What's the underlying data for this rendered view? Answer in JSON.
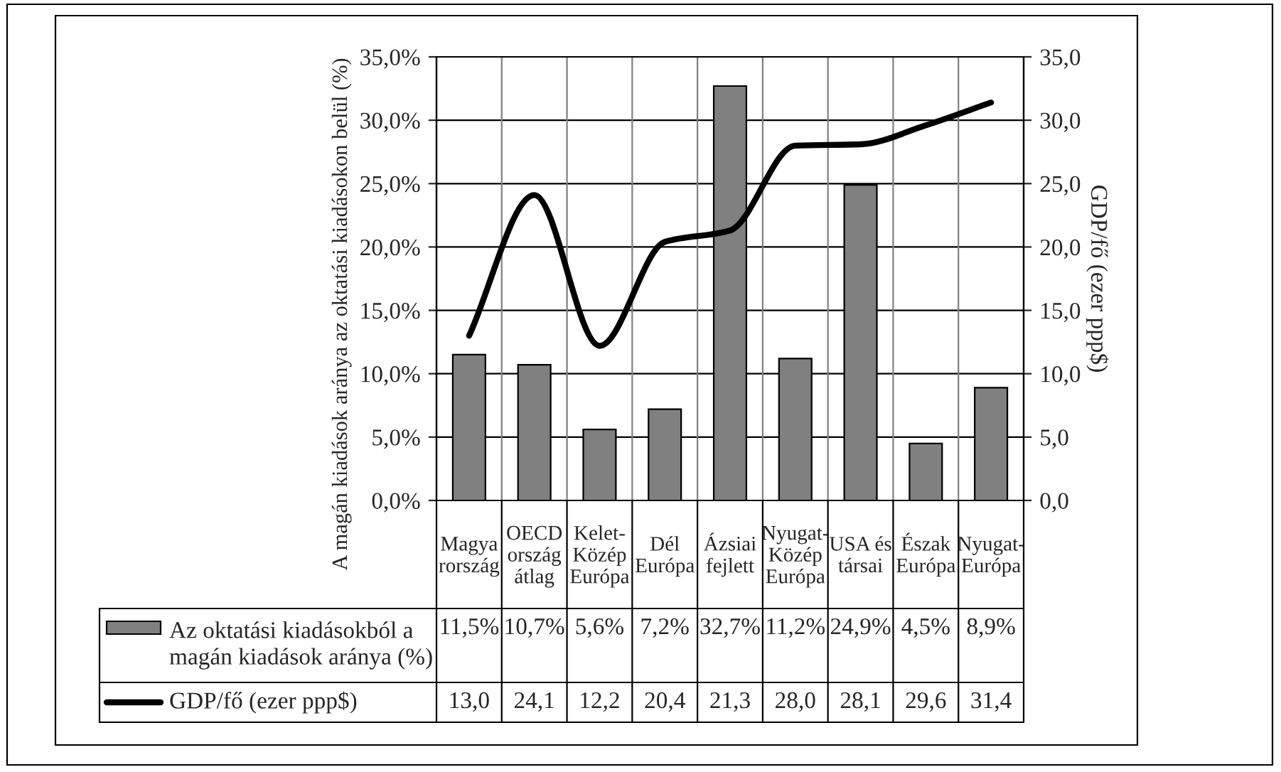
{
  "chart_data": {
    "type": "bar",
    "ylabel": "A magán kiadások aránya az oktatási kiadásokon belül (%)",
    "y2label": "GDP/fő (ezer ppp$)",
    "categories": [
      "Magya\nrország",
      "OECD\nország\nátlag",
      "Kelet-\nKözép\nEurópa",
      "Dél\nEurópa",
      "Ázsiai\nfejlett",
      "Nyugat-\nKözép\nEurópa",
      "USA és\ntársai",
      "Észak\nEurópa",
      "Nyugat-\nEurópa"
    ],
    "series": [
      {
        "name": "Az oktatási kiadásokból a\nmagán kiadások aránya (%)",
        "color": "#808080",
        "values": [
          11.5,
          10.7,
          5.6,
          7.2,
          32.7,
          11.2,
          24.9,
          4.5,
          8.9
        ],
        "value_labels": [
          "11,5%",
          "10,7%",
          "5,6%",
          "7,2%",
          "32,7%",
          "11,2%",
          "24,9%",
          "4,5%",
          "8,9%"
        ]
      },
      {
        "name": "GDP/fő (ezer ppp$)",
        "type": "line",
        "axis": "y2",
        "color": "#000000",
        "values": [
          13.0,
          24.1,
          12.2,
          20.4,
          21.3,
          28.0,
          28.1,
          29.6,
          31.4
        ],
        "value_labels": [
          "13,0",
          "24,1",
          "12,2",
          "20,4",
          "21,3",
          "28,0",
          "28,1",
          "29,6",
          "31,4"
        ]
      }
    ],
    "ylim": [
      0,
      35
    ],
    "yticks": [
      {
        "value": 0,
        "label": "0,0%"
      },
      {
        "value": 5,
        "label": "5,0%"
      },
      {
        "value": 10,
        "label": "10,0%"
      },
      {
        "value": 15,
        "label": "15,0%"
      },
      {
        "value": 20,
        "label": "20,0%"
      },
      {
        "value": 25,
        "label": "25,0%"
      },
      {
        "value": 30,
        "label": "30,0%"
      },
      {
        "value": 35,
        "label": "35,0%"
      }
    ],
    "y2lim": [
      0,
      35
    ],
    "y2ticks": [
      {
        "value": 0,
        "label": "0,0"
      },
      {
        "value": 5,
        "label": "5,0"
      },
      {
        "value": 10,
        "label": "10,0"
      },
      {
        "value": 15,
        "label": "15,0"
      },
      {
        "value": 20,
        "label": "20,0"
      },
      {
        "value": 25,
        "label": "25,0"
      },
      {
        "value": 30,
        "label": "30,0"
      },
      {
        "value": 35,
        "label": "35,0"
      }
    ],
    "grid": true,
    "legend": "bottom left"
  }
}
